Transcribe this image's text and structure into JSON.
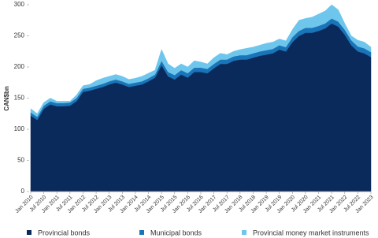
{
  "chart_data": {
    "type": "stacked_area",
    "y_label": "CAN$bn",
    "categories": [
      "Jan 2010",
      null,
      "Jul 2010",
      null,
      "Jan 2011",
      null,
      "Jul 2011",
      null,
      "Jan 2012",
      null,
      "Jul 2012",
      null,
      "Jan 2013",
      null,
      "Jul 2013",
      null,
      "Jan 2014",
      null,
      "Jul 2014",
      null,
      "Jan 2015",
      null,
      "Jul 2015",
      null,
      "Jan 2016",
      null,
      "Jul 2016",
      null,
      "Jan 2017",
      null,
      "Jul 2017",
      null,
      "Jan 2018",
      null,
      "Jul 2018",
      null,
      "Jan 2019",
      null,
      "Jul 2019",
      null,
      "Jan 2020",
      null,
      "Jul 2020",
      null,
      "Jan 2021",
      null,
      "Jul 2021",
      null,
      "Jan 2022",
      null,
      "Jul 2022",
      null,
      "Jan 2023"
    ],
    "series": [
      {
        "name": "Provincial bonds",
        "color": "#0b2a5c",
        "values": [
          122,
          115,
          133,
          140,
          137,
          137,
          138,
          145,
          160,
          162,
          165,
          168,
          172,
          175,
          172,
          168,
          170,
          172,
          177,
          183,
          203,
          185,
          180,
          188,
          183,
          192,
          192,
          190,
          198,
          205,
          205,
          210,
          212,
          212,
          215,
          218,
          220,
          222,
          228,
          225,
          240,
          250,
          255,
          255,
          258,
          262,
          270,
          265,
          252,
          235,
          225,
          222,
          216
        ]
      },
      {
        "name": "Municipal bonds",
        "color": "#1a74b8",
        "values": [
          5,
          5,
          5,
          5,
          5,
          5,
          5,
          5,
          5,
          5,
          5,
          5,
          5,
          5,
          5,
          5,
          5,
          5,
          5,
          5,
          7,
          7,
          7,
          7,
          7,
          7,
          7,
          7,
          7,
          7,
          7,
          7,
          7,
          7,
          7,
          7,
          7,
          7,
          7,
          7,
          8,
          8,
          8,
          8,
          8,
          8,
          8,
          8,
          8,
          8,
          8,
          8,
          8
        ]
      },
      {
        "name": "Provincial money market instruments",
        "color": "#6fc6ec",
        "values": [
          6,
          5,
          5,
          5,
          3,
          3,
          2,
          5,
          5,
          5,
          8,
          9,
          8,
          8,
          8,
          7,
          7,
          8,
          8,
          7,
          18,
          13,
          11,
          10,
          10,
          11,
          9,
          8,
          10,
          10,
          8,
          8,
          9,
          11,
          10,
          10,
          11,
          11,
          10,
          10,
          12,
          17,
          15,
          17,
          19,
          20,
          22,
          19,
          10,
          7,
          10,
          10,
          8
        ]
      }
    ],
    "ylim": [
      0,
      300
    ],
    "yticks": [
      0,
      50,
      100,
      150,
      200,
      250,
      300
    ],
    "grid": false,
    "legend": "bottom"
  }
}
